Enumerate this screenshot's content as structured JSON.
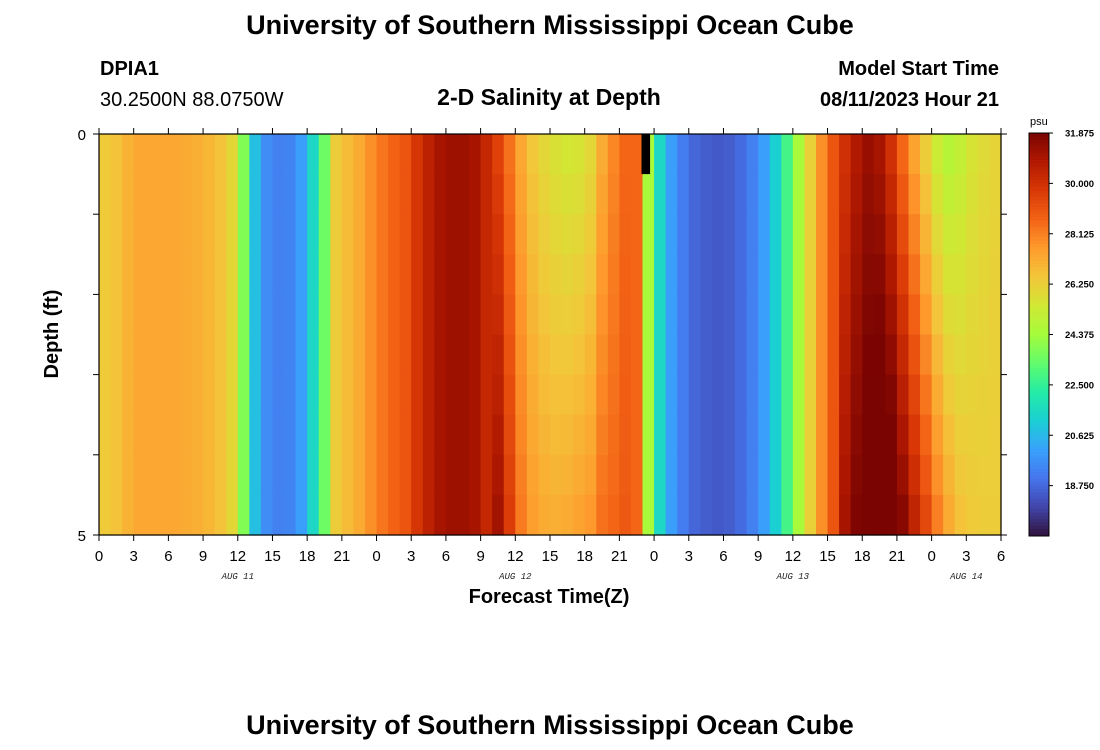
{
  "page": {
    "title_top": "University of Southern Mississippi Ocean Cube",
    "title_bottom": "University of Southern Mississippi Ocean Cube"
  },
  "station": {
    "id": "DPIA1",
    "coords": "30.2500N  88.0750W"
  },
  "model": {
    "label": "Model Start Time",
    "start": "08/11/2023 Hour 21"
  },
  "chart_data": {
    "type": "heatmap",
    "title": "2-D Salinity at Depth",
    "xlabel": "Forecast Time(Z)",
    "ylabel": "Depth (ft)",
    "ylim": [
      0,
      5
    ],
    "y_ticks": [
      "0",
      "5"
    ],
    "x_tick_labels": [
      "0",
      "3",
      "6",
      "9",
      "12",
      "15",
      "18",
      "21",
      "0",
      "3",
      "6",
      "9",
      "12",
      "15",
      "18",
      "21",
      "0",
      "3",
      "6",
      "9",
      "12",
      "15",
      "18",
      "21",
      "0",
      "3",
      "6"
    ],
    "date_labels": [
      {
        "label": "AUG 11",
        "hour": 12
      },
      {
        "label": "AUG 12",
        "hour": 36
      },
      {
        "label": "AUG 13",
        "hour": 60
      },
      {
        "label": "AUG 14",
        "hour": 75
      }
    ],
    "hours": 78,
    "layers": 10,
    "missing_cell": {
      "hour": 47,
      "layer": 0
    },
    "colorbar": {
      "unit": "psu",
      "min": 16.875,
      "max": 31.875,
      "labels": [
        "31.875",
        "30.000",
        "28.125",
        "26.250",
        "24.375",
        "22.500",
        "20.625",
        "18.750"
      ],
      "colors": [
        "#30123b",
        "#4145ab",
        "#4675ed",
        "#39a2fc",
        "#1bcfd4",
        "#24eca6",
        "#61fc6c",
        "#a4fc3b",
        "#d1e834",
        "#f3c63a",
        "#fe9b2d",
        "#f36315",
        "#d93806",
        "#b11901",
        "#7a0402"
      ]
    },
    "surface_salinity": [
      26.4,
      26.6,
      27.0,
      27.3,
      27.3,
      27.3,
      27.3,
      27.2,
      27.1,
      26.9,
      26.6,
      26.0,
      23.8,
      20.8,
      19.6,
      19.3,
      19.4,
      20.0,
      21.5,
      23.5,
      26.3,
      26.8,
      27.2,
      27.8,
      28.3,
      28.7,
      29.0,
      29.8,
      30.5,
      31.0,
      31.2,
      31.2,
      31.0,
      30.3,
      29.5,
      28.4,
      27.3,
      26.5,
      26.0,
      25.7,
      25.5,
      25.6,
      26.0,
      27.2,
      28.0,
      28.6,
      28.6,
      24.5,
      21.5,
      20.0,
      19.2,
      18.7,
      18.5,
      18.4,
      18.5,
      18.8,
      19.3,
      20.0,
      21.2,
      22.8,
      24.5,
      26.2,
      27.8,
      29.0,
      30.0,
      30.8,
      31.3,
      31.0,
      30.0,
      28.6,
      27.4,
      26.3,
      25.3,
      24.8,
      25.1,
      25.6,
      25.9,
      26.1
    ],
    "depth_offsets": [
      0,
      0,
      0,
      0,
      0,
      0,
      0,
      0,
      0,
      0,
      0,
      0,
      0,
      0,
      0,
      0,
      0,
      0,
      0,
      0,
      0,
      0,
      0,
      0,
      0,
      0,
      0,
      0,
      0,
      0,
      0,
      0,
      0,
      0,
      1.6,
      1.2,
      0.9,
      1.0,
      1.2,
      1.4,
      1.7,
      1.8,
      1.6,
      1.2,
      0.6,
      0.3,
      0,
      0,
      0,
      0,
      0,
      0,
      0,
      0,
      0,
      0,
      0,
      0,
      0,
      0,
      0,
      0,
      0,
      0,
      1.0,
      1.0,
      1.0,
      1.8,
      2.6,
      3.0,
      3.0,
      3.0,
      2.8,
      2.4,
      1.5,
      0.8,
      0.4,
      0.2
    ]
  }
}
